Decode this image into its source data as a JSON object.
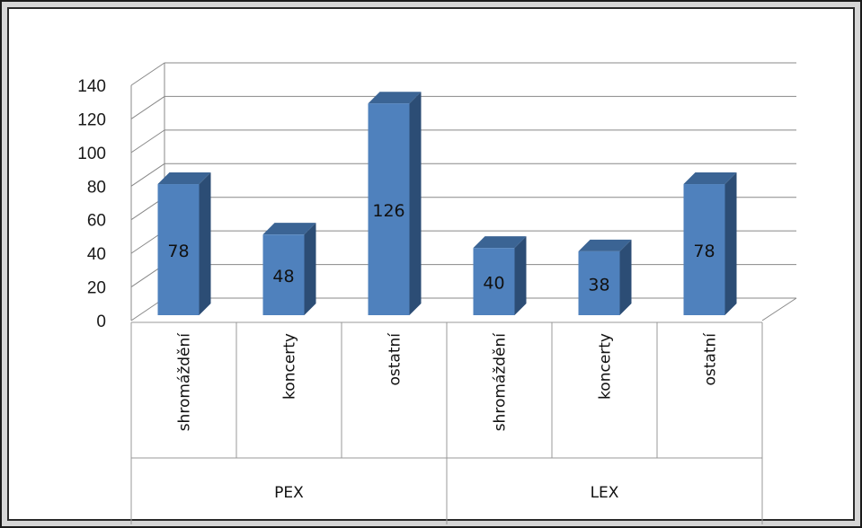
{
  "chart_data": {
    "type": "bar",
    "style": "3d-column",
    "title": "",
    "xlabel": "",
    "ylabel": "",
    "ylim": [
      0,
      140
    ],
    "y_ticks": [
      "0",
      "20",
      "40",
      "60",
      "80",
      "100",
      "120",
      "140"
    ],
    "grid": true,
    "legend": "none",
    "data_labels": true,
    "groups": [
      {
        "label": "PEX",
        "categories": [
          "shromáždění",
          "koncerty",
          "ostatní"
        ]
      },
      {
        "label": "LEX",
        "categories": [
          "shromáždění",
          "koncerty",
          "ostatní"
        ]
      }
    ],
    "categories": [
      "shromáždění",
      "koncerty",
      "ostatní",
      "shromáždění",
      "koncerty",
      "ostatní"
    ],
    "values": [
      78,
      48,
      126,
      40,
      38,
      78
    ],
    "colors": {
      "bar_front": "#4f81bd",
      "bar_side": "#2c4d75",
      "bar_top": "#3b6494",
      "grid": "#888888",
      "axis": "#999999"
    }
  }
}
